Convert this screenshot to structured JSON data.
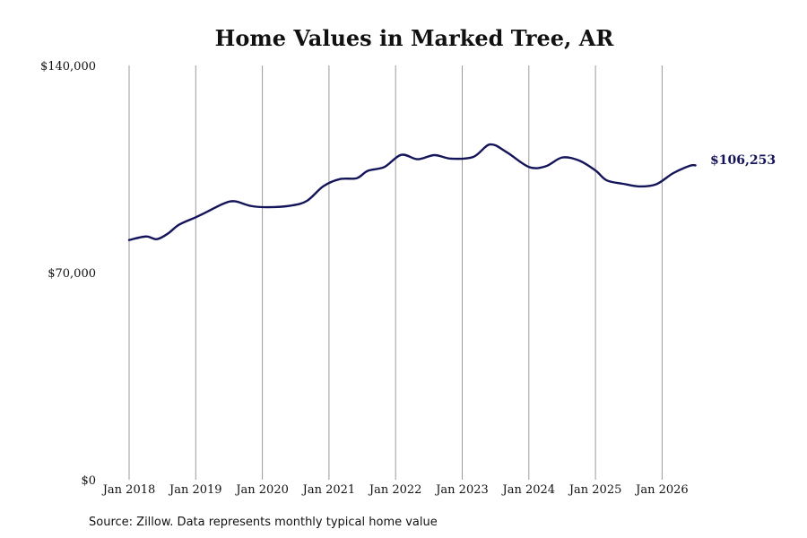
{
  "chart_data": {
    "type": "line",
    "title": "Home Values in Marked Tree, AR",
    "xlabel": "",
    "ylabel": "",
    "ylim": [
      0,
      140000
    ],
    "y_ticks": [
      {
        "value": 0,
        "label": "$0"
      },
      {
        "value": 70000,
        "label": "$70,000"
      },
      {
        "value": 140000,
        "label": "$140,000"
      }
    ],
    "x_ticks": [
      {
        "value": "2018-01",
        "label": "Jan 2018"
      },
      {
        "value": "2019-01",
        "label": "Jan 2019"
      },
      {
        "value": "2020-01",
        "label": "Jan 2020"
      },
      {
        "value": "2021-01",
        "label": "Jan 2021"
      },
      {
        "value": "2022-01",
        "label": "Jan 2022"
      },
      {
        "value": "2023-01",
        "label": "Jan 2023"
      },
      {
        "value": "2024-01",
        "label": "Jan 2024"
      },
      {
        "value": "2025-01",
        "label": "Jan 2025"
      },
      {
        "value": "2026-01",
        "label": "Jan 2026"
      }
    ],
    "grid": "vertical",
    "line_color": "#14145a",
    "end_label": "$106,253",
    "series": [
      {
        "x": [
          "2018-01",
          "2018-04",
          "2018-06",
          "2018-08",
          "2018-10",
          "2019-01",
          "2019-03",
          "2019-06",
          "2019-08",
          "2019-11",
          "2020-02",
          "2020-06",
          "2020-09",
          "2020-12",
          "2021-03",
          "2021-06",
          "2021-08",
          "2021-11",
          "2022-02",
          "2022-05",
          "2022-08",
          "2022-11",
          "2023-03",
          "2023-06",
          "2023-09",
          "2024-01",
          "2024-04",
          "2024-07",
          "2024-10",
          "2025-01",
          "2025-03",
          "2025-06",
          "2025-09",
          "2025-12",
          "2026-03",
          "2026-06",
          "2026-07"
        ],
        "values": [
          81000,
          82200,
          81300,
          83200,
          86200,
          88700,
          90500,
          93300,
          94100,
          92500,
          92100,
          92600,
          94200,
          99200,
          101600,
          101900,
          104400,
          105700,
          109800,
          108300,
          109700,
          108500,
          109100,
          113300,
          110700,
          105700,
          105900,
          108900,
          107900,
          104500,
          101200,
          100000,
          99100,
          99900,
          103600,
          106100,
          106253
        ]
      }
    ],
    "source": "Source: Zillow. Data represents monthly typical home value"
  }
}
